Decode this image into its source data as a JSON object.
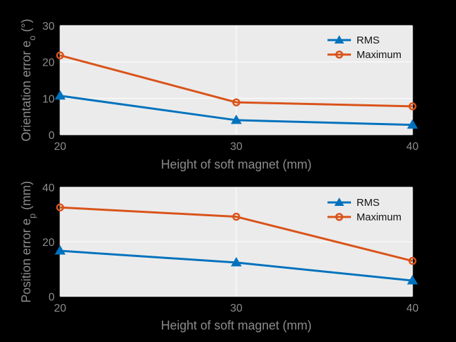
{
  "colors": {
    "background": "#000000",
    "plot_bg": "#ebebeb",
    "grid": "#ffffff",
    "axis_text": "#8c8c8c",
    "rms": "#0072bd",
    "maximum": "#d95319"
  },
  "chart_data": [
    {
      "type": "line",
      "x": [
        20,
        30,
        40
      ],
      "xlabel": "Height of soft magnet (mm)",
      "ylabel_main": "Orientation error e",
      "ylabel_sub": "o",
      "ylabel_unit": " (°)",
      "xlim": [
        20,
        40
      ],
      "ylim": [
        0,
        30
      ],
      "xticks": [
        "20",
        "30",
        "40"
      ],
      "yticks": [
        "0",
        "10",
        "20",
        "30"
      ],
      "grid": true,
      "legend_position": "top-right",
      "series": [
        {
          "name": "RMS",
          "marker": "triangle",
          "values": [
            10.7,
            4.0,
            2.7
          ]
        },
        {
          "name": "Maximum",
          "marker": "circle",
          "values": [
            21.8,
            8.9,
            7.8
          ]
        }
      ]
    },
    {
      "type": "line",
      "x": [
        20,
        30,
        40
      ],
      "xlabel": "Height of soft magnet (mm)",
      "ylabel_main": "Position error e",
      "ylabel_sub": "p",
      "ylabel_unit": " (mm)",
      "xlim": [
        20,
        40
      ],
      "ylim": [
        0,
        40
      ],
      "xticks": [
        "20",
        "30",
        "40"
      ],
      "yticks": [
        "0",
        "20",
        "40"
      ],
      "grid": true,
      "legend_position": "top-right",
      "series": [
        {
          "name": "RMS",
          "marker": "triangle",
          "values": [
            16.7,
            12.4,
            5.8
          ]
        },
        {
          "name": "Maximum",
          "marker": "circle",
          "values": [
            32.6,
            29.2,
            13.0
          ]
        }
      ]
    }
  ]
}
